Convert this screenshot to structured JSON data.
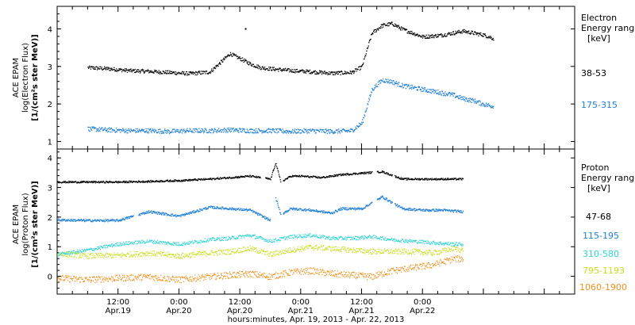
{
  "chart_data": [
    {
      "type": "scatter",
      "ylabel_lines": [
        "ACE EPAM",
        "log(Electron Flux)",
        "[1/(cm²s ster MeV)]"
      ],
      "ylim": [
        0.8,
        4.6
      ],
      "yticks": [
        1,
        2,
        3,
        4
      ],
      "legend_title": [
        "Electron",
        "Energy range",
        "[keV]"
      ],
      "legend_placement": "right",
      "series": [
        {
          "name": "38-53",
          "color": "#000000",
          "x": [
            0,
            4,
            8,
            12,
            16,
            20,
            24,
            26,
            28,
            30,
            32,
            34,
            36,
            40,
            44,
            48,
            52,
            54,
            56,
            58,
            60,
            62,
            64,
            66,
            68,
            70,
            72,
            74,
            76,
            78,
            80
          ],
          "y": [
            2.98,
            2.95,
            2.9,
            2.88,
            2.85,
            2.82,
            2.86,
            3.1,
            3.35,
            3.22,
            3.08,
            2.98,
            2.95,
            2.9,
            2.87,
            2.83,
            2.85,
            3.0,
            3.9,
            4.1,
            4.15,
            4.0,
            3.9,
            3.8,
            3.82,
            3.85,
            3.9,
            3.95,
            3.9,
            3.85,
            3.75
          ]
        },
        {
          "name": "175-315",
          "color": "#1f7fd6",
          "x": [
            0,
            4,
            8,
            12,
            16,
            20,
            24,
            28,
            32,
            36,
            40,
            44,
            48,
            52,
            54,
            56,
            58,
            60,
            62,
            64,
            66,
            68,
            70,
            72,
            74,
            76,
            78,
            80
          ],
          "y": [
            1.35,
            1.32,
            1.3,
            1.3,
            1.28,
            1.3,
            1.3,
            1.32,
            1.3,
            1.3,
            1.28,
            1.3,
            1.28,
            1.3,
            1.5,
            2.4,
            2.65,
            2.6,
            2.5,
            2.45,
            2.4,
            2.35,
            2.3,
            2.25,
            2.15,
            2.1,
            2.0,
            1.95
          ]
        }
      ],
      "annotations": [
        {
          "x": 31,
          "y": 4.02,
          "color": "#000000"
        }
      ]
    },
    {
      "type": "scatter",
      "ylabel_lines": [
        "ACE EPAM",
        "log(Proton Flux)",
        "[1/(cm²s ster MeV)]"
      ],
      "ylim": [
        -0.6,
        4.3
      ],
      "yticks": [
        0,
        1,
        2,
        3,
        4
      ],
      "legend_title": [
        "Proton",
        "Energy range",
        "[keV]"
      ],
      "legend_placement": "right",
      "xlabel": "hours:minutes, Apr. 19, 2013 - Apr. 22, 2013",
      "xlim": [
        -6,
        96
      ],
      "xticks": [
        {
          "x": 6,
          "time": "12:00",
          "date": "Apr.19"
        },
        {
          "x": 18,
          "time": "0:00",
          "date": "Apr.20"
        },
        {
          "x": 30,
          "time": "12:00",
          "date": "Apr.20"
        },
        {
          "x": 42,
          "time": "0:00",
          "date": "Apr.21"
        },
        {
          "x": 54,
          "time": "12:00",
          "date": "Apr.21"
        },
        {
          "x": 66,
          "time": "0:00",
          "date": "Apr.22"
        }
      ],
      "series": [
        {
          "name": "47-68",
          "color": "#000000",
          "x": [
            -6,
            0,
            6,
            12,
            18,
            24,
            28,
            32,
            36,
            37,
            38,
            40,
            42,
            46,
            50,
            54,
            58,
            62,
            66,
            70,
            74
          ],
          "y": [
            3.2,
            3.2,
            3.2,
            3.22,
            3.25,
            3.3,
            3.35,
            3.4,
            3.3,
            3.85,
            3.2,
            3.4,
            3.4,
            3.35,
            3.45,
            3.5,
            3.55,
            3.3,
            3.3,
            3.3,
            3.3
          ],
          "segments": [
            [
              -6,
              34
            ],
            [
              35,
              38
            ],
            [
              38.5,
              56
            ],
            [
              57,
              60
            ],
            [
              60.5,
              74
            ]
          ]
        },
        {
          "name": "115-195",
          "color": "#1f7fd6",
          "x": [
            -6,
            0,
            6,
            12,
            18,
            24,
            28,
            32,
            36,
            37,
            38,
            40,
            44,
            48,
            50,
            54,
            58,
            62,
            66,
            70,
            74
          ],
          "y": [
            1.92,
            1.9,
            1.9,
            2.2,
            2.05,
            2.35,
            2.3,
            2.25,
            1.9,
            2.65,
            2.1,
            2.3,
            2.25,
            2.15,
            2.3,
            2.3,
            2.7,
            2.3,
            2.25,
            2.25,
            2.2
          ],
          "segments": [
            [
              -6,
              9
            ],
            [
              10,
              36
            ],
            [
              37,
              38
            ],
            [
              38.5,
              56
            ],
            [
              57,
              60
            ],
            [
              60.5,
              74
            ]
          ]
        },
        {
          "name": "310-580",
          "color": "#2fd3d3",
          "x": [
            -6,
            0,
            6,
            12,
            18,
            24,
            28,
            32,
            36,
            40,
            44,
            48,
            52,
            56,
            60,
            64,
            68,
            72,
            74
          ],
          "y": [
            0.75,
            0.9,
            1.1,
            1.2,
            1.1,
            1.25,
            1.3,
            1.4,
            1.2,
            1.35,
            1.4,
            1.3,
            1.3,
            1.35,
            1.25,
            1.2,
            1.15,
            1.1,
            1.1
          ]
        },
        {
          "name": "795-1193",
          "color": "#c9de1a",
          "x": [
            -6,
            0,
            6,
            12,
            18,
            24,
            28,
            32,
            36,
            40,
            44,
            48,
            52,
            56,
            60,
            64,
            68,
            72,
            74
          ],
          "y": [
            0.78,
            0.7,
            0.72,
            0.8,
            0.7,
            0.8,
            0.85,
            0.95,
            0.75,
            0.9,
            1.0,
            0.95,
            0.9,
            0.85,
            0.85,
            0.85,
            0.8,
            0.95,
            0.9
          ]
        },
        {
          "name": "1060-1900",
          "color": "#f0901c",
          "x": [
            -6,
            0,
            6,
            12,
            18,
            24,
            28,
            32,
            36,
            40,
            44,
            48,
            52,
            56,
            60,
            64,
            68,
            72,
            74
          ],
          "y": [
            -0.05,
            -0.1,
            -0.05,
            0.0,
            -0.1,
            0.0,
            0.05,
            0.1,
            0.0,
            0.15,
            0.2,
            0.1,
            0.05,
            0.0,
            0.2,
            0.3,
            0.4,
            0.6,
            0.6
          ]
        }
      ]
    }
  ]
}
